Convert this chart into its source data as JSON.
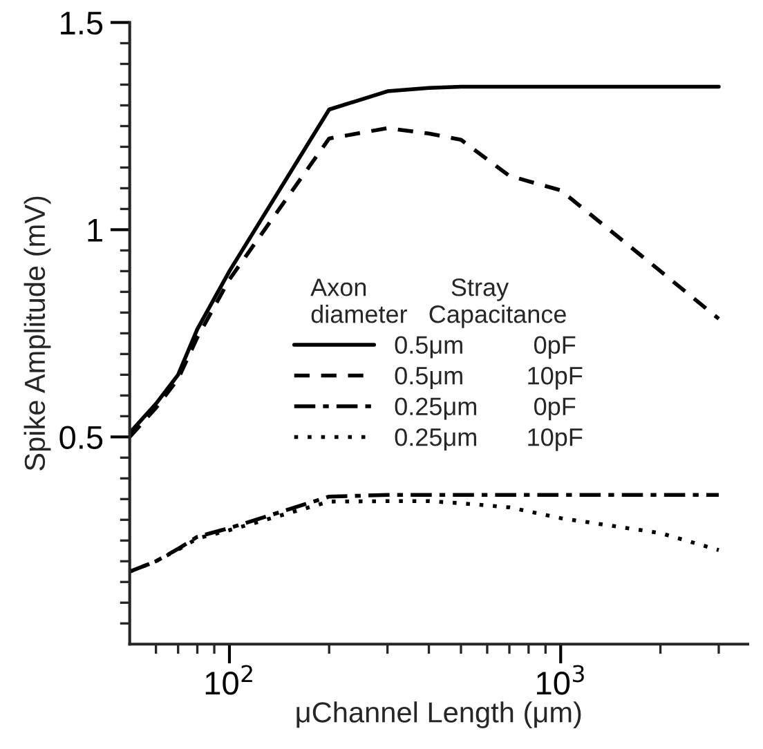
{
  "chart_data": {
    "type": "line",
    "xlabel": "μChannel Length (μm)",
    "ylabel": "Spike Amplitude (mV)",
    "log": "x",
    "xlim": [
      50,
      3670
    ],
    "ylim": [
      0,
      1.5
    ],
    "xticks": [
      {
        "value": 60,
        "label": null
      },
      {
        "value": 70,
        "label": null
      },
      {
        "value": 80,
        "label": null
      },
      {
        "value": 90,
        "label": null
      },
      {
        "value": 100,
        "label": "10$^{2}$"
      },
      {
        "value": 200,
        "label": null
      },
      {
        "value": 300,
        "label": null
      },
      {
        "value": 400,
        "label": null
      },
      {
        "value": 500,
        "label": null
      },
      {
        "value": 600,
        "label": null
      },
      {
        "value": 700,
        "label": null
      },
      {
        "value": 800,
        "label": null
      },
      {
        "value": 900,
        "label": null
      },
      {
        "value": 1000,
        "label": "10$^{3}$"
      },
      {
        "value": 2000,
        "label": null
      },
      {
        "value": 3000,
        "label": null
      }
    ],
    "yticks": [
      {
        "value": 0.05,
        "label": null
      },
      {
        "value": 0.1,
        "label": null
      },
      {
        "value": 0.15,
        "label": null
      },
      {
        "value": 0.2,
        "label": null
      },
      {
        "value": 0.25,
        "label": null
      },
      {
        "value": 0.3,
        "label": null
      },
      {
        "value": 0.35,
        "label": null
      },
      {
        "value": 0.4,
        "label": null
      },
      {
        "value": 0.45,
        "label": null
      },
      0.5,
      {
        "value": 0.55,
        "label": null
      },
      {
        "value": 0.6,
        "label": null
      },
      {
        "value": 0.65,
        "label": null
      },
      {
        "value": 0.7,
        "label": null
      },
      {
        "value": 0.75,
        "label": null
      },
      {
        "value": 0.8,
        "label": null
      },
      {
        "value": 0.85,
        "label": null
      },
      {
        "value": 0.9,
        "label": null
      },
      {
        "value": 0.95,
        "label": null
      },
      1,
      {
        "value": 1.05,
        "label": null
      },
      {
        "value": 1.1,
        "label": null
      },
      {
        "value": 1.15,
        "label": null
      },
      {
        "value": 1.2,
        "label": null
      },
      {
        "value": 1.25,
        "label": null
      },
      {
        "value": 1.3,
        "label": null
      },
      {
        "value": 1.35,
        "label": null
      },
      {
        "value": 1.4,
        "label": null
      },
      {
        "value": 1.45,
        "label": null
      },
      1.5
    ],
    "grid": false,
    "legend": "center",
    "legend_title": "Axon            Stray\ndiameter   Capacitance",
    "x": [
      50,
      60,
      70,
      80,
      100,
      200,
      300,
      400,
      500,
      700,
      1000,
      2000,
      3000
    ],
    "series": [
      {
        "name": "0.5μm          0pF",
        "color": "#000000",
        "line_style": "solid",
        "values": [
          0.51,
          0.58,
          0.65,
          0.76,
          0.9,
          1.29,
          1.334,
          1.342,
          1.345,
          1.345,
          1.345,
          1.345,
          1.345
        ]
      },
      {
        "name": "0.5μm         10pF",
        "color": "#000000",
        "line_style": "dashed",
        "values": [
          0.5,
          0.57,
          0.64,
          0.74,
          0.88,
          1.22,
          1.245,
          1.232,
          1.217,
          1.13,
          1.095,
          0.9,
          0.785
        ]
      },
      {
        "name": "0.25μm        0pF",
        "color": "#000000",
        "line_style": "dashdot",
        "values": [
          0.175,
          0.2,
          0.23,
          0.259,
          0.28,
          0.356,
          0.36,
          0.36,
          0.36,
          0.36,
          0.36,
          0.36,
          0.36
        ]
      },
      {
        "name": "0.25μm       10pF",
        "color": "#000000",
        "line_style": "dotted",
        "values": [
          0.175,
          0.2,
          0.228,
          0.255,
          0.275,
          0.344,
          0.345,
          0.345,
          0.34,
          0.33,
          0.304,
          0.268,
          0.227
        ]
      }
    ]
  }
}
